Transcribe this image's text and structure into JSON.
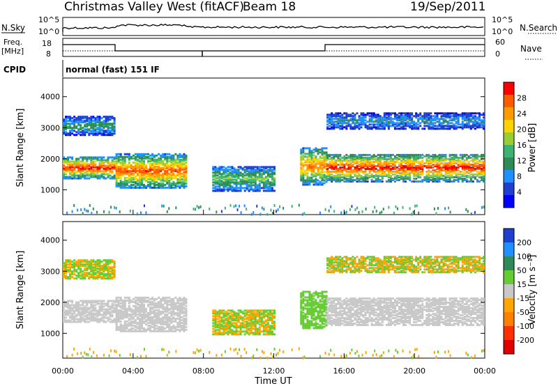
{
  "header": {
    "title": "Christmas Valley West (fitACF)",
    "beam": "Beam 18",
    "date": "19/Sep/2011"
  },
  "status_rows": {
    "nsky_label": "N.Sky",
    "nsearch_label": "N.Search",
    "freq_label": "Freq.",
    "freq_unit": "[MHz]",
    "nave_label": "Nave",
    "cpid_label": "CPID",
    "cpid_text": "normal (fast) 151 IF",
    "noise_ticks": [
      "10^5",
      "10^0"
    ],
    "freq_ticks": [
      "18",
      "8"
    ],
    "nave_ticks": [
      "60",
      "0"
    ]
  },
  "chart_data": [
    {
      "type": "heatmap",
      "name": "power",
      "ylabel": "Slant Range [km]",
      "xlabel": "",
      "ylim": [
        200,
        4600
      ],
      "yticks": [
        "1000",
        "2000",
        "3000",
        "4000"
      ],
      "colorbar_label": "Power [dB]",
      "colorbar_ticks": [
        "28",
        "24",
        "20",
        "16",
        "12",
        "8",
        "4"
      ],
      "colorbar_colors": [
        "#ff0000",
        "#ff5a00",
        "#ff9a00",
        "#ffd200",
        "#9acd32",
        "#3cb371",
        "#2e8b57",
        "#1e90ff",
        "#1f3fd0",
        "#0000ff"
      ],
      "echo_bands": [
        {
          "from_h": 0,
          "to_h": 3,
          "range_km": [
            1400,
            2100
          ],
          "peak_db": 28
        },
        {
          "from_h": 3,
          "to_h": 7,
          "range_km": [
            1100,
            2200
          ],
          "peak_db": 26
        },
        {
          "from_h": 8.5,
          "to_h": 12,
          "range_km": [
            1000,
            1800
          ],
          "peak_db": 14
        },
        {
          "from_h": 13.5,
          "to_h": 15,
          "range_km": [
            1200,
            2400
          ],
          "peak_db": 24
        },
        {
          "from_h": 15,
          "to_h": 24,
          "range_km": [
            1300,
            2200
          ],
          "peak_db": 28
        },
        {
          "from_h": 0,
          "to_h": 3,
          "range_km": [
            2800,
            3400
          ],
          "peak_db": 10
        },
        {
          "from_h": 15,
          "to_h": 24,
          "range_km": [
            3000,
            3500
          ],
          "peak_db": 8
        }
      ]
    },
    {
      "type": "heatmap",
      "name": "velocity",
      "ylabel": "Slant Range [km]",
      "xlabel": "Time UT",
      "ylim": [
        200,
        4600
      ],
      "yticks": [
        "1000",
        "2000",
        "3000",
        "4000"
      ],
      "xticks": [
        "00:00",
        "04:00",
        "08:00",
        "12:00",
        "16:00",
        "20:00",
        "00:00"
      ],
      "xlim_hours": [
        0,
        24
      ],
      "colorbar_label": "Velocity [m s⁻¹]",
      "colorbar_ticks": [
        "200",
        "100",
        "50",
        "15",
        "-15",
        "-50",
        "-100",
        "-200"
      ],
      "colorbar_colors": [
        "#1f3fd0",
        "#1e90ff",
        "#2e8b57",
        "#66cc33",
        "#c8c8c8",
        "#ffa500",
        "#ff7f00",
        "#ff3000",
        "#e00000"
      ]
    }
  ]
}
